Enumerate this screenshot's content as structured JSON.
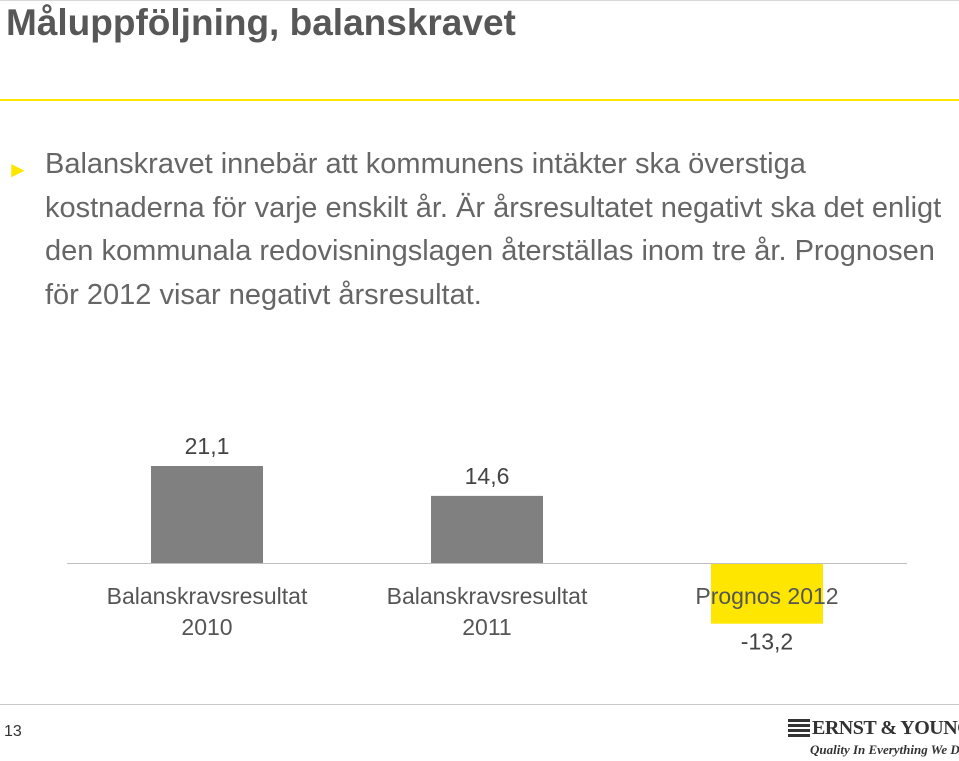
{
  "slide": {
    "title": "Måluppföljning, balanskravet",
    "bullet": "Balanskravet innebär att kommunens intäkter ska överstiga kostnaderna för varje enskilt år. Är årsresultatet negativt ska det enligt den kommunala redovisningslagen återställas inom tre år. Prognosen för 2012 visar negativt årsresultat.",
    "page_number": "13"
  },
  "logo": {
    "name": "ERNST & YOUNG",
    "tagline": "Quality In Everything We Do"
  },
  "colors": {
    "accent_yellow": "#ffe600",
    "bar_gray": "#808080",
    "text_gray": "#666666"
  },
  "chart_data": {
    "type": "bar",
    "categories": [
      [
        "Balanskravsresultat",
        "2010"
      ],
      [
        "Balanskravsresultat",
        "2011"
      ],
      [
        "Prognos 2012"
      ]
    ],
    "values": [
      21.1,
      14.6,
      -13.2
    ],
    "data_labels": [
      "21,1",
      "14,6",
      "-13,2"
    ],
    "highlight_index": 2,
    "title": "",
    "xlabel": "",
    "ylabel": "",
    "ylim": [
      -13.2,
      21.1
    ],
    "axes_visible": false,
    "grid": false
  }
}
